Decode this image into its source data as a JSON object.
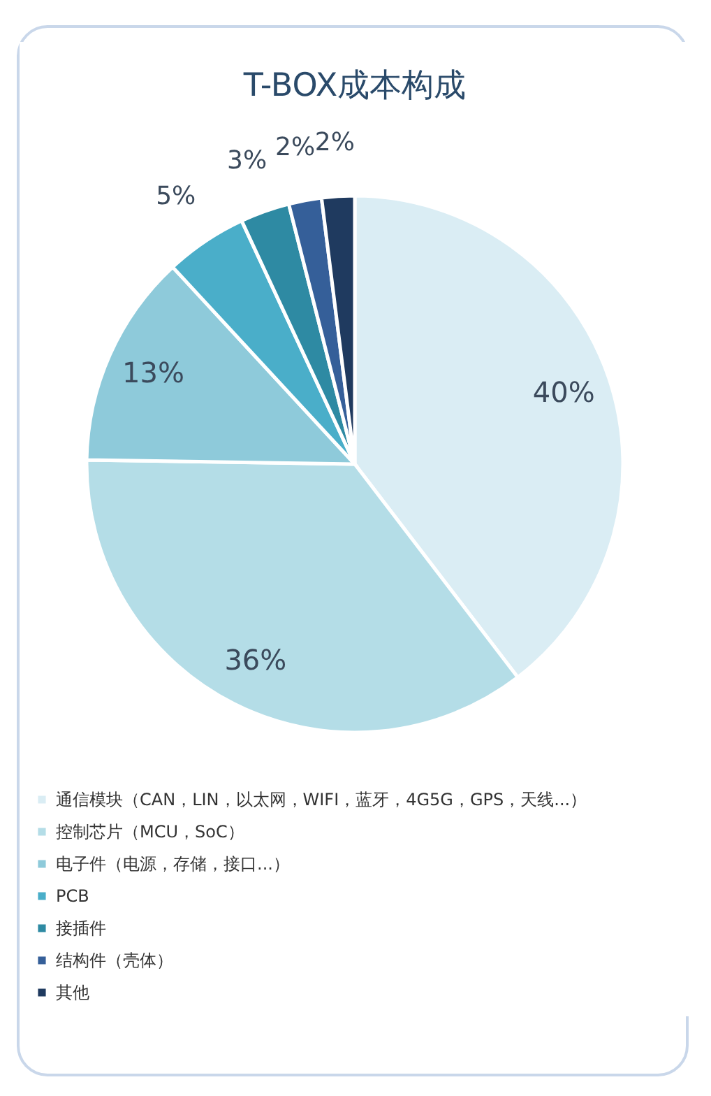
{
  "chart_data": {
    "type": "pie",
    "title": "T-BOX成本构成",
    "categories": [
      "通信模块（CAN，LIN，以太网，WIFI，蓝牙，4G5G，GPS，天线...）",
      "控制芯片（MCU，SoC）",
      "电子件（电源，存储，接口...）",
      "PCB",
      "接插件",
      "结构件（壳体）",
      "其他"
    ],
    "values": [
      40,
      36,
      13,
      5,
      3,
      2,
      2
    ],
    "value_labels": [
      "40%",
      "36%",
      "13%",
      "5%",
      "3%",
      "2%",
      "2%"
    ],
    "colors": [
      "#daedf4",
      "#b4dde7",
      "#8ecada",
      "#4aaec9",
      "#2e8aa3",
      "#355f99",
      "#1f3a5f"
    ],
    "legend": "bottom left"
  }
}
